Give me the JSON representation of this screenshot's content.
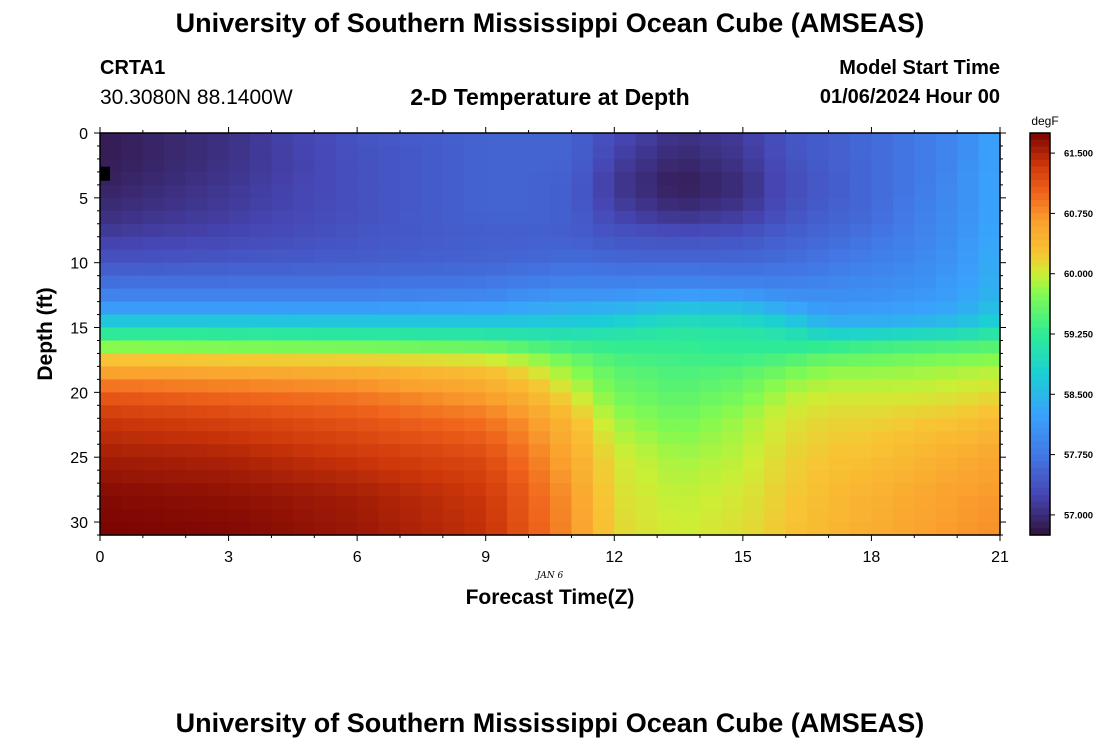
{
  "header": {
    "title": "University of Southern Mississippi Ocean Cube (AMSEAS)",
    "station_id": "CRTA1",
    "coords": "30.3080N  88.1400W",
    "chart_title": "2-D Temperature at Depth",
    "model_start_label": "Model Start Time",
    "model_start_value": "01/06/2024 Hour 00"
  },
  "footer": {
    "title": "University of Southern Mississippi Ocean Cube (AMSEAS)"
  },
  "chart_data": {
    "type": "heatmap",
    "title": "2-D Temperature at Depth",
    "xlabel": "Forecast Time(Z)",
    "ylabel": "Depth (ft)",
    "date_label": "JAN 6",
    "xlim": [
      0,
      21
    ],
    "ylim": [
      0,
      31
    ],
    "x_ticks": [
      0,
      3,
      6,
      9,
      12,
      15,
      18,
      21
    ],
    "y_ticks": [
      0,
      5,
      10,
      15,
      20,
      25,
      30
    ],
    "colorbar": {
      "unit": "degF",
      "min": 56.75,
      "max": 61.75,
      "ticks": [
        "61.500",
        "60.750",
        "60.000",
        "59.250",
        "58.500",
        "57.750",
        "57.000"
      ]
    },
    "time_hours": [
      0,
      3,
      6,
      9,
      10,
      11,
      12,
      13.5,
      15,
      16,
      17,
      18,
      19,
      20,
      21
    ],
    "depth_ft": [
      0,
      2,
      4,
      6,
      8,
      10,
      12,
      13,
      14,
      15,
      16,
      17,
      18,
      20,
      22,
      25,
      28,
      31
    ],
    "temperature_degF": [
      [
        56.85,
        57.05,
        57.4,
        57.55,
        57.55,
        57.55,
        57.3,
        57.05,
        57.15,
        57.4,
        57.5,
        57.6,
        57.75,
        57.95,
        58.3
      ],
      [
        56.85,
        57.05,
        57.35,
        57.55,
        57.55,
        57.55,
        57.2,
        56.95,
        57.1,
        57.35,
        57.5,
        57.6,
        57.75,
        57.95,
        58.3
      ],
      [
        56.9,
        57.1,
        57.35,
        57.55,
        57.55,
        57.5,
        57.1,
        56.85,
        57.0,
        57.3,
        57.45,
        57.6,
        57.75,
        58.0,
        58.3
      ],
      [
        57.0,
        57.15,
        57.35,
        57.55,
        57.55,
        57.5,
        57.2,
        57.0,
        57.1,
        57.35,
        57.5,
        57.6,
        57.8,
        58.0,
        58.3
      ],
      [
        57.15,
        57.25,
        57.4,
        57.5,
        57.5,
        57.5,
        57.4,
        57.35,
        57.4,
        57.5,
        57.6,
        57.7,
        57.85,
        58.05,
        58.35
      ],
      [
        57.4,
        57.45,
        57.5,
        57.55,
        57.6,
        57.65,
        57.6,
        57.6,
        57.6,
        57.65,
        57.75,
        57.85,
        57.95,
        58.1,
        58.4
      ],
      [
        57.75,
        57.75,
        57.75,
        57.8,
        57.9,
        57.95,
        57.95,
        58.0,
        57.95,
        57.9,
        57.95,
        58.0,
        58.05,
        58.2,
        58.45
      ],
      [
        58.0,
        58.0,
        58.0,
        58.05,
        58.15,
        58.25,
        58.25,
        58.4,
        58.35,
        58.15,
        58.05,
        58.1,
        58.15,
        58.25,
        58.55
      ],
      [
        58.35,
        58.35,
        58.35,
        58.4,
        58.45,
        58.5,
        58.55,
        58.8,
        58.75,
        58.5,
        58.2,
        58.25,
        58.3,
        58.4,
        58.7
      ],
      [
        58.95,
        58.95,
        58.9,
        58.85,
        58.85,
        58.85,
        58.95,
        59.1,
        59.05,
        58.95,
        58.55,
        58.5,
        58.55,
        58.65,
        58.95
      ],
      [
        59.5,
        59.45,
        59.4,
        59.35,
        59.25,
        59.2,
        59.2,
        59.25,
        59.2,
        59.15,
        59.1,
        59.2,
        59.25,
        59.3,
        59.35
      ],
      [
        60.05,
        60.0,
        59.95,
        59.85,
        59.7,
        59.5,
        59.35,
        59.3,
        59.25,
        59.3,
        59.45,
        59.5,
        59.55,
        59.6,
        59.65
      ],
      [
        60.5,
        60.45,
        60.4,
        60.25,
        60.05,
        59.75,
        59.5,
        59.4,
        59.45,
        59.6,
        59.75,
        59.75,
        59.8,
        59.85,
        59.9
      ],
      [
        61.05,
        60.95,
        60.85,
        60.6,
        60.4,
        60.05,
        59.65,
        59.5,
        59.65,
        59.9,
        60.0,
        60.0,
        60.0,
        60.05,
        60.1
      ],
      [
        61.35,
        61.25,
        61.1,
        60.9,
        60.7,
        60.35,
        59.85,
        59.65,
        59.85,
        60.05,
        60.15,
        60.15,
        60.2,
        60.25,
        60.35
      ],
      [
        61.55,
        61.5,
        61.35,
        61.2,
        60.9,
        60.55,
        60.05,
        59.85,
        59.95,
        60.15,
        60.25,
        60.3,
        60.4,
        60.5,
        60.6
      ],
      [
        61.7,
        61.65,
        61.55,
        61.35,
        61.05,
        60.7,
        60.1,
        59.95,
        60.05,
        60.2,
        60.35,
        60.45,
        60.55,
        60.65,
        60.7
      ],
      [
        61.75,
        61.72,
        61.6,
        61.4,
        61.1,
        60.75,
        60.15,
        60.0,
        60.1,
        60.25,
        60.4,
        60.5,
        60.6,
        60.7,
        60.75
      ]
    ]
  }
}
